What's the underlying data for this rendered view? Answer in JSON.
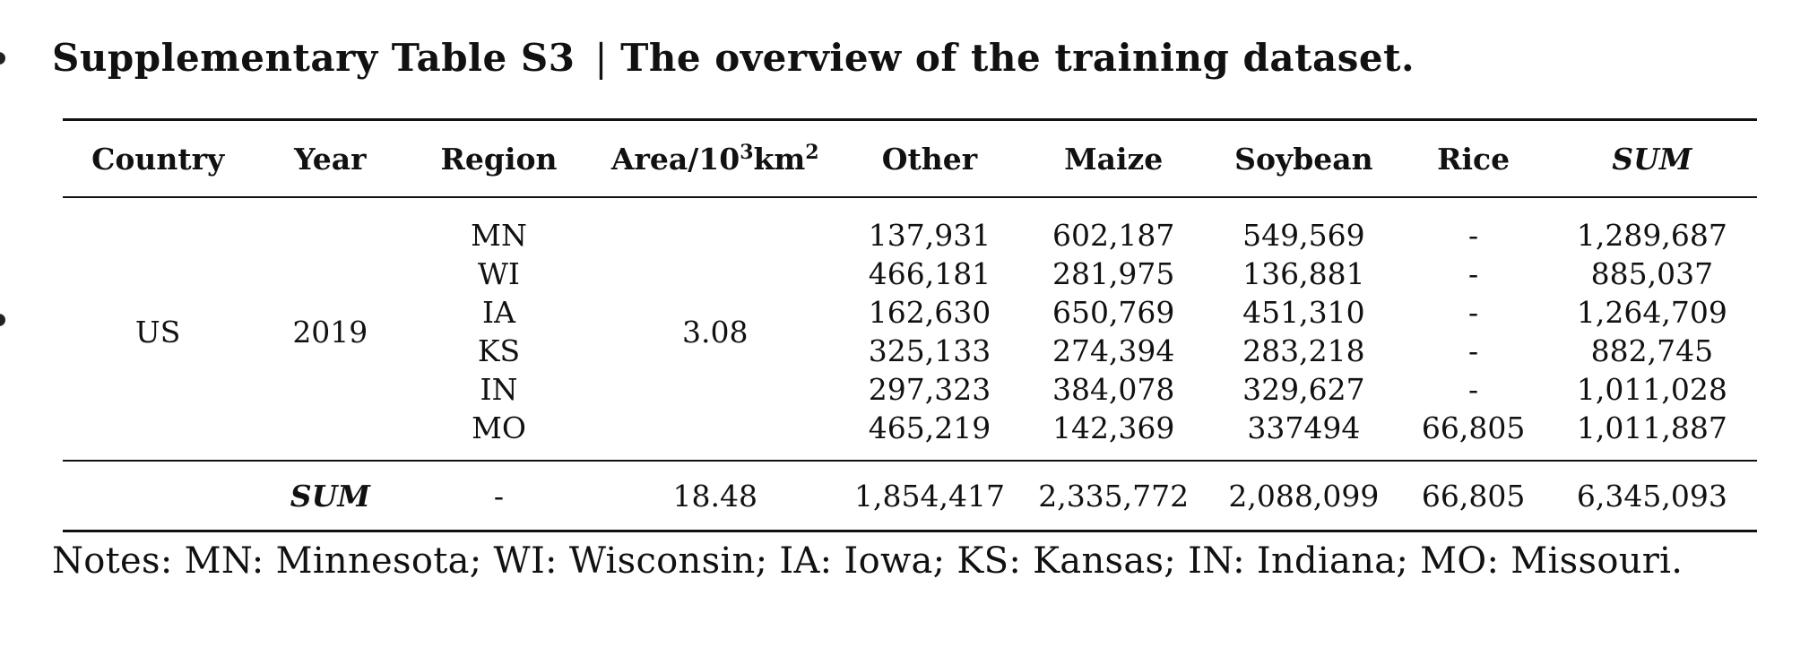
{
  "caption": {
    "label": "Supplementary Table S3",
    "separator": "|",
    "text": "The overview of the training dataset."
  },
  "table": {
    "headers": {
      "country": "Country",
      "year": "Year",
      "region": "Region",
      "area_prefix": "Area/10",
      "area_sup1": "3",
      "area_unit": "km",
      "area_sup2": "2",
      "other": "Other",
      "maize": "Maize",
      "soybean": "Soybean",
      "rice": "Rice",
      "sum": "SUM"
    },
    "group": {
      "country": "US",
      "year": "2019",
      "area": "3.08"
    },
    "rows": [
      {
        "region": "MN",
        "other": "137,931",
        "maize": "602,187",
        "soybean": "549,569",
        "rice": "-",
        "sum": "1,289,687"
      },
      {
        "region": "WI",
        "other": "466,181",
        "maize": "281,975",
        "soybean": "136,881",
        "rice": "-",
        "sum": "885,037"
      },
      {
        "region": "IA",
        "other": "162,630",
        "maize": "650,769",
        "soybean": "451,310",
        "rice": "-",
        "sum": "1,264,709"
      },
      {
        "region": "KS",
        "other": "325,133",
        "maize": "274,394",
        "soybean": "283,218",
        "rice": "-",
        "sum": "882,745"
      },
      {
        "region": "IN",
        "other": "297,323",
        "maize": "384,078",
        "soybean": "329,627",
        "rice": "-",
        "sum": "1,011,028"
      },
      {
        "region": "MO",
        "other": "465,219",
        "maize": "142,369",
        "soybean": "337494",
        "rice": "66,805",
        "sum": "1,011,887"
      }
    ],
    "total": {
      "label": "SUM",
      "region": "-",
      "area": "18.48",
      "other": "1,854,417",
      "maize": "2,335,772",
      "soybean": "2,088,099",
      "rice": "66,805",
      "sum": "6,345,093"
    }
  },
  "notes": "Notes: MN: Minnesota; WI: Wisconsin; IA: Iowa; KS: Kansas; IN: Indiana; MO: Missouri."
}
